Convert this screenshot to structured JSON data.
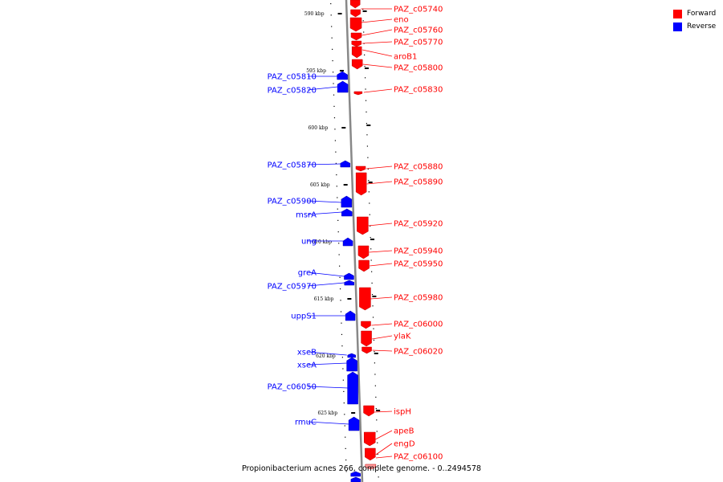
{
  "title": "Propionibacterium acnes 266, complete genome. - 0..2494578",
  "legend": [
    {
      "label": "Forward",
      "color": "#ff0000"
    },
    {
      "label": "Reverse",
      "color": "#0000ff"
    }
  ],
  "ticks": [
    "590 kbp",
    "595 kbp",
    "600 kbp",
    "605 kbp",
    "610 kbp",
    "615 kbp",
    "620 kbp",
    "625 kbp"
  ],
  "forward_genes": [
    "PAZ_c05740",
    "eno",
    "PAZ_c05760",
    "PAZ_c05770",
    "aroB1",
    "PAZ_c05800",
    "PAZ_c05830",
    "PAZ_c05880",
    "PAZ_c05890",
    "PAZ_c05920",
    "PAZ_c05940",
    "PAZ_c05950",
    "PAZ_c05980",
    "PAZ_c06000",
    "ylaK",
    "PAZ_c06020",
    "ispH",
    "apeB",
    "engD",
    "PAZ_c06100"
  ],
  "reverse_genes": [
    "PAZ_c05810",
    "PAZ_c05820",
    "PAZ_c05870",
    "PAZ_c05900",
    "msrA",
    "ung",
    "greA",
    "PAZ_c05970",
    "uppS1",
    "xseB",
    "xseA",
    "PAZ_c06050",
    "rmuC"
  ],
  "colors": {
    "forward": "#ff0000",
    "reverse": "#0000ff",
    "backbone": "#888888"
  }
}
